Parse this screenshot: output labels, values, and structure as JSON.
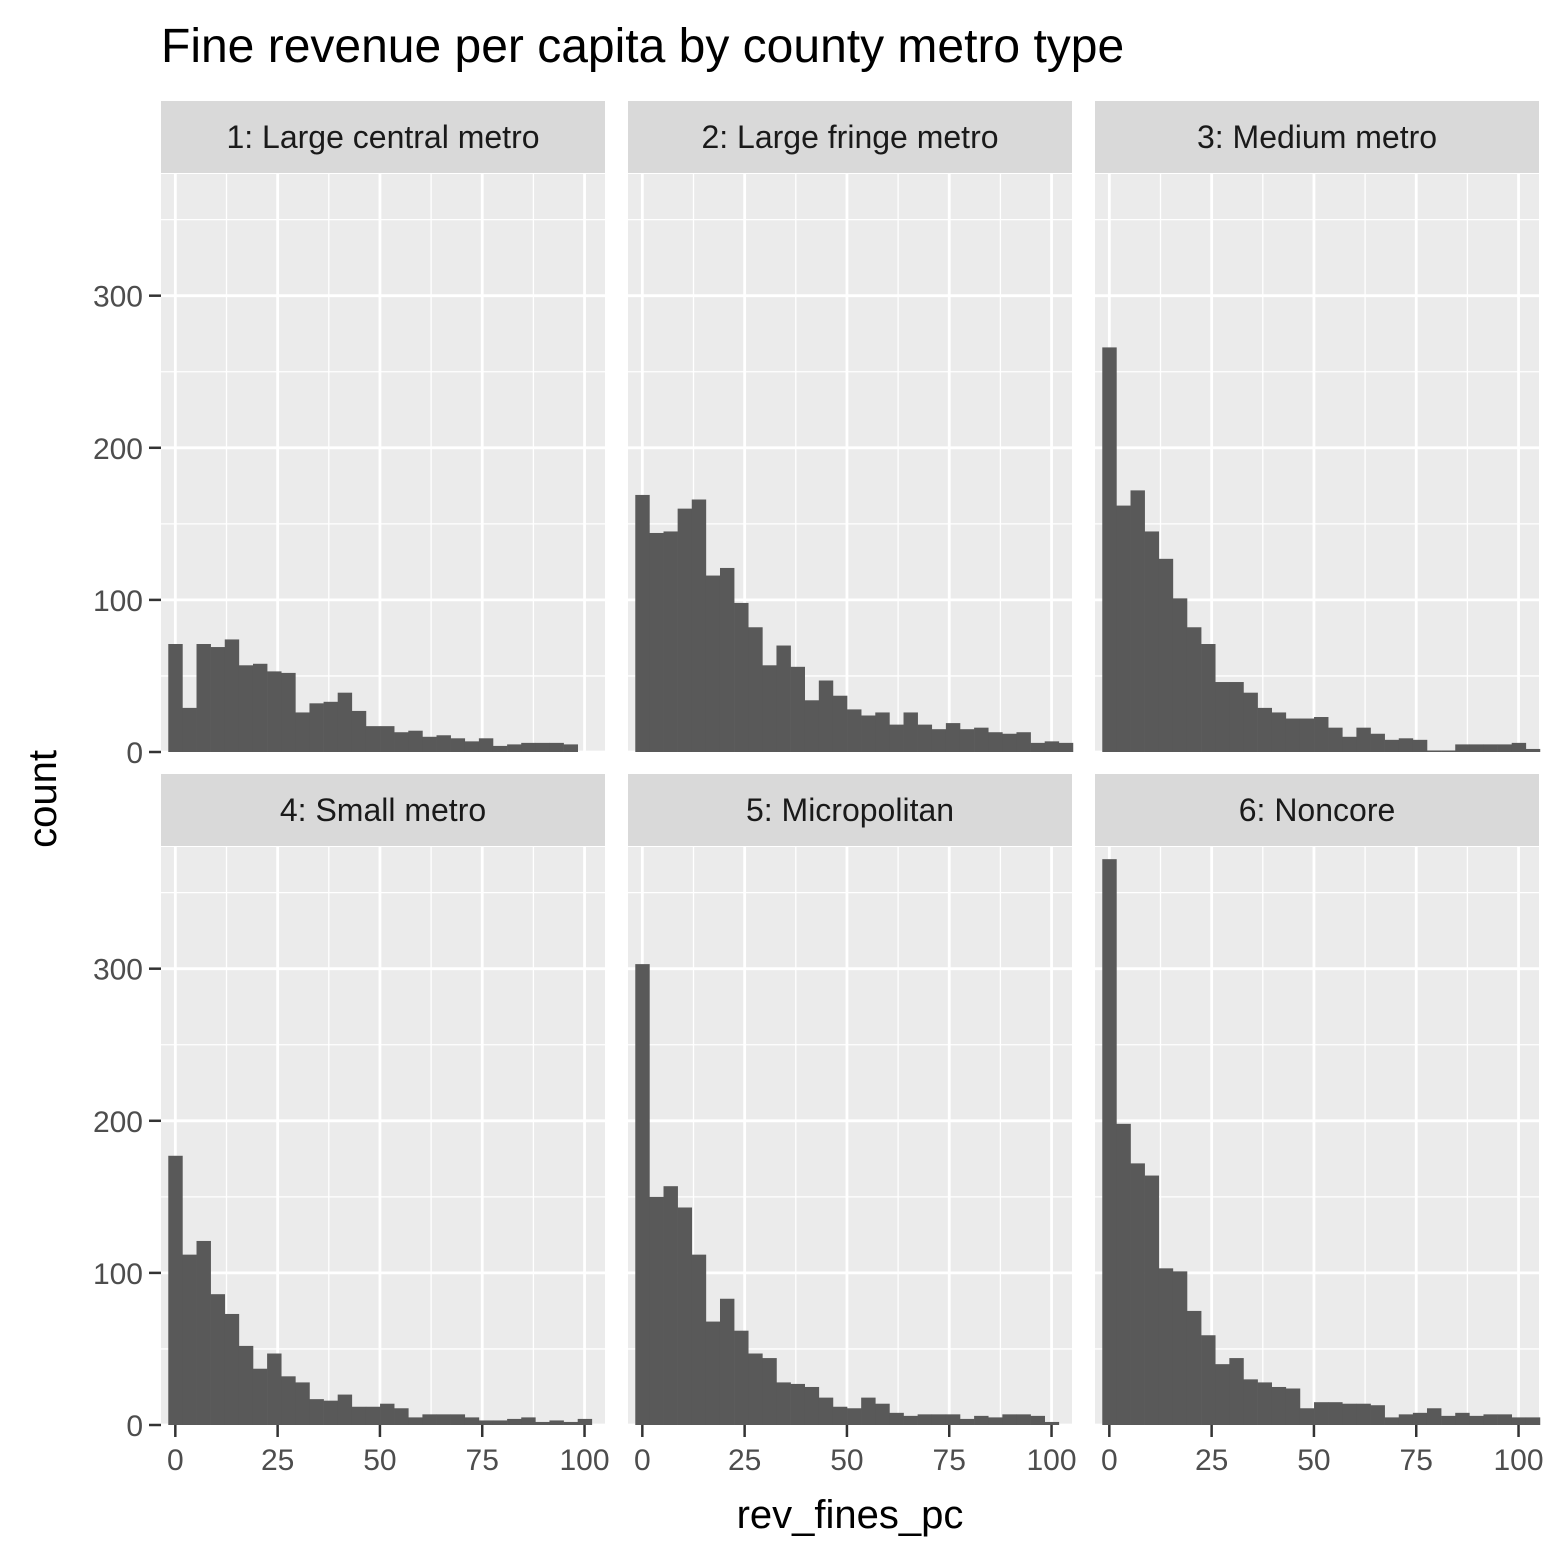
{
  "chart_data": {
    "type": "bar",
    "title": "Fine revenue per capita by county metro type",
    "xlabel": "rev_fines_pc",
    "ylabel": "count",
    "xlim": [
      -3.5,
      105
    ],
    "ylim": [
      0,
      380
    ],
    "x_ticks": [
      0,
      25,
      50,
      75,
      100
    ],
    "y_ticks": [
      0,
      100,
      200,
      300
    ],
    "x_tick_labels": [
      "0",
      "25",
      "50",
      "75",
      "100"
    ],
    "y_tick_labels": [
      "0",
      "100",
      "200",
      "300"
    ],
    "grid": true,
    "legend": "none",
    "bin_start": -1.72,
    "bin_width": 3.45,
    "bar_color": "#595959",
    "panel_background": "#ebebeb",
    "strip_background": "#d9d9d9",
    "grid_color": "#ffffff",
    "facets": [
      {
        "name": "1: Large central metro",
        "values": [
          71,
          29,
          71,
          69,
          74,
          57,
          58,
          53,
          52,
          26,
          32,
          33,
          39,
          27,
          17,
          17,
          13,
          14,
          10,
          11,
          9,
          7,
          9,
          4,
          5,
          6,
          6,
          6,
          5
        ]
      },
      {
        "name": "2: Large fringe metro",
        "values": [
          169,
          144,
          145,
          160,
          166,
          116,
          121,
          98,
          82,
          57,
          70,
          56,
          34,
          47,
          37,
          28,
          24,
          26,
          18,
          26,
          18,
          15,
          19,
          15,
          16,
          13,
          12,
          13,
          6,
          7,
          6
        ]
      },
      {
        "name": "3: Medium metro",
        "values": [
          266,
          162,
          172,
          145,
          127,
          101,
          82,
          71,
          46,
          46,
          39,
          29,
          26,
          22,
          22,
          23,
          16,
          10,
          16,
          12,
          8,
          9,
          8,
          1,
          1,
          5,
          5,
          5,
          5,
          6,
          2
        ]
      },
      {
        "name": "4: Small metro",
        "values": [
          177,
          112,
          121,
          86,
          73,
          52,
          37,
          47,
          32,
          28,
          17,
          16,
          20,
          12,
          12,
          14,
          11,
          5,
          7,
          7,
          7,
          5,
          3,
          3,
          4,
          5,
          2,
          3,
          2,
          4
        ]
      },
      {
        "name": "5: Micropolitan",
        "values": [
          303,
          150,
          157,
          143,
          112,
          68,
          83,
          62,
          47,
          44,
          28,
          27,
          25,
          18,
          12,
          11,
          18,
          14,
          8,
          6,
          7,
          7,
          7,
          4,
          6,
          5,
          7,
          7,
          6,
          2
        ]
      },
      {
        "name": "6: Noncore",
        "values": [
          372,
          198,
          172,
          164,
          103,
          101,
          75,
          59,
          40,
          44,
          30,
          28,
          25,
          24,
          11,
          15,
          15,
          14,
          14,
          13,
          5,
          7,
          8,
          11,
          6,
          8,
          6,
          7,
          7,
          5,
          5
        ]
      }
    ]
  }
}
